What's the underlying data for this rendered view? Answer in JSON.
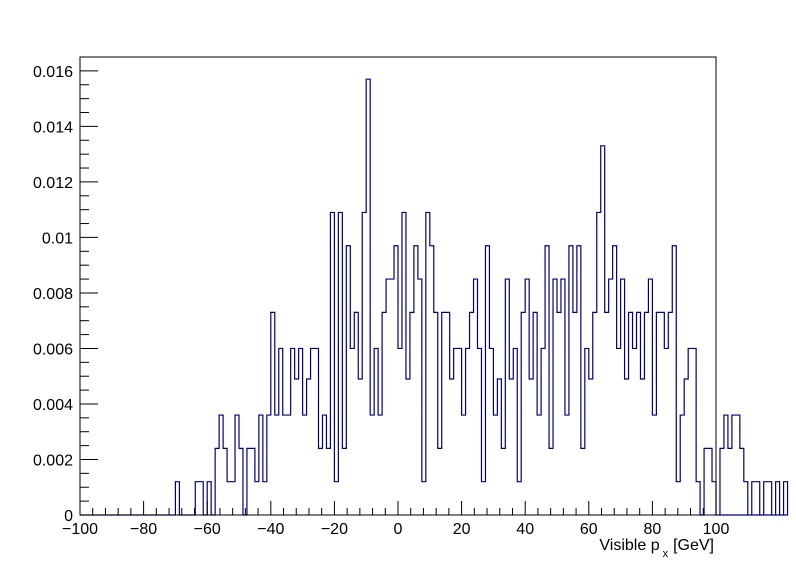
{
  "chart_data": {
    "type": "histogram",
    "title": "",
    "xlabel": "Visible p",
    "xlabel_subscript": "x",
    "xlabel_unit": "[GeV]",
    "ylabel": "",
    "xlim": [
      -100,
      100
    ],
    "ylim": [
      0,
      0.0165
    ],
    "x_ticks": [
      -100,
      -80,
      -60,
      -40,
      -20,
      0,
      20,
      40,
      60,
      80,
      100
    ],
    "x_tick_labels": [
      "−100",
      "−80",
      "−60",
      "−40",
      "−20",
      "0",
      "20",
      "40",
      "60",
      "80",
      "100"
    ],
    "y_ticks": [
      0,
      0.002,
      0.004,
      0.006,
      0.008,
      0.01,
      0.012,
      0.014,
      0.016
    ],
    "y_tick_labels": [
      "0",
      "0.002",
      "0.004",
      "0.006",
      "0.008",
      "0.01",
      "0.012",
      "0.014",
      "0.016"
    ],
    "bin_width": 1.25,
    "bin_start": -70,
    "values": [
      0.0012,
      0,
      0,
      0,
      0,
      0.0012,
      0.0012,
      0,
      0.0012,
      0,
      0.0024,
      0.0036,
      0.0024,
      0.0012,
      0.0012,
      0.0036,
      0.0024,
      0,
      0.0024,
      0.0024,
      0.0012,
      0.0036,
      0.0012,
      0.0036,
      0.0073,
      0.0036,
      0.006,
      0.0036,
      0.0036,
      0.006,
      0.0049,
      0.006,
      0.0036,
      0.0049,
      0.006,
      0.006,
      0.0024,
      0.0036,
      0.0024,
      0.0109,
      0.0012,
      0.0109,
      0.0024,
      0.0097,
      0.006,
      0.0073,
      0.0049,
      0.0109,
      0.0157,
      0.0036,
      0.006,
      0.0036,
      0.0073,
      0.0085,
      0.0085,
      0.0097,
      0.006,
      0.0109,
      0.0049,
      0.0073,
      0.0097,
      0.0085,
      0.0012,
      0.0109,
      0.0097,
      0.0073,
      0.0024,
      0.0073,
      0.0073,
      0.0049,
      0.006,
      0.006,
      0.0036,
      0.006,
      0.0073,
      0.0085,
      0.006,
      0.0012,
      0.0097,
      0.006,
      0.0036,
      0.0049,
      0.0024,
      0.0085,
      0.0049,
      0.006,
      0.0012,
      0.0073,
      0.0085,
      0.0049,
      0.0073,
      0.0036,
      0.006,
      0.0097,
      0.0024,
      0.0085,
      0.0073,
      0.0085,
      0.0036,
      0.0097,
      0.0073,
      0.0097,
      0.0024,
      0.006,
      0.0049,
      0.0073,
      0.0109,
      0.0133,
      0.0073,
      0.0085,
      0.0097,
      0.006,
      0.0085,
      0.0049,
      0.0073,
      0.006,
      0.0073,
      0.0049,
      0.0073,
      0.0085,
      0.0036,
      0.0073,
      0.0073,
      0.006,
      0.0073,
      0.0097,
      0.0012,
      0.0036,
      0.0049,
      0.006,
      0.006,
      0.0012,
      0,
      0.0024,
      0.0024,
      0.0012,
      0,
      0.0024,
      0.0036,
      0.0024,
      0.0036,
      0.0036,
      0.0024,
      0.0012,
      0,
      0.0012,
      0.0012,
      0,
      0.0012,
      0.0012,
      0,
      0.0012,
      0,
      0.0012
    ],
    "line_color": "#00007f",
    "grid": false,
    "legend": "none"
  }
}
